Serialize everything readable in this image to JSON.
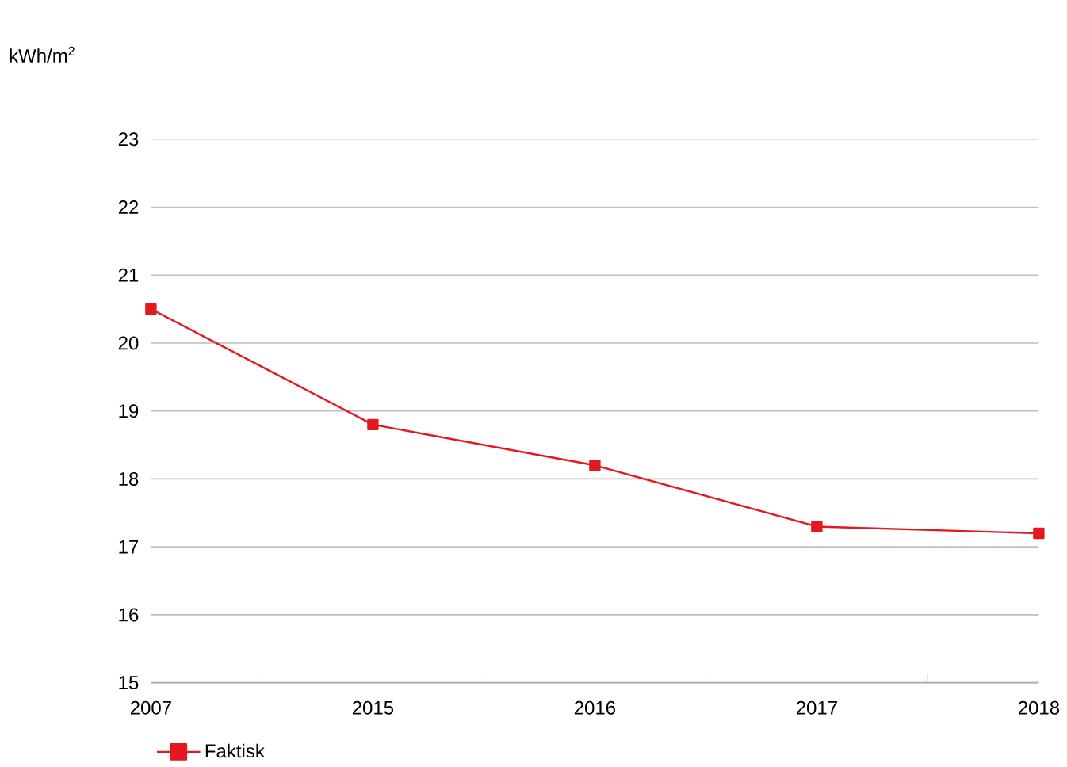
{
  "chart_data": {
    "type": "line",
    "ylabel": "kWh/m$^{2}$",
    "categories": [
      "2007",
      "2015",
      "2016",
      "2017",
      "2018"
    ],
    "series": [
      {
        "name": "Faktisk",
        "color": "#e3191f",
        "values": [
          20.5,
          18.8,
          18.2,
          17.3,
          17.2
        ]
      }
    ],
    "ylim": [
      15,
      23
    ],
    "yticks": [
      15,
      16,
      17,
      18,
      19,
      20,
      21,
      22,
      23
    ],
    "grid": "y",
    "legend": "bottom left",
    "marker": "square",
    "line_style": "solid"
  }
}
